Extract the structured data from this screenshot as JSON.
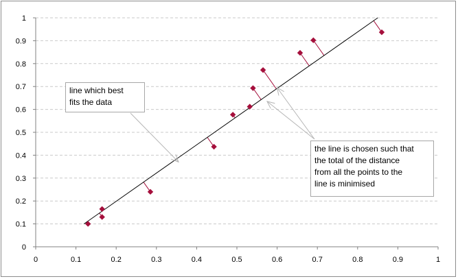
{
  "chart_data": {
    "type": "scatter",
    "title": "",
    "xlabel": "",
    "ylabel": "",
    "xlim": [
      0,
      1
    ],
    "ylim": [
      0,
      1
    ],
    "x_ticks": [
      "0",
      "0.1",
      "0.2",
      "0.3",
      "0.4",
      "0.5",
      "0.6",
      "0.7",
      "0.8",
      "0.9",
      "1"
    ],
    "y_ticks": [
      "0",
      "0.1",
      "0.2",
      "0.3",
      "0.4",
      "0.5",
      "0.6",
      "0.7",
      "0.8",
      "0.9",
      "1"
    ],
    "grid": "horizontal dashed",
    "points": [
      {
        "x": 0.13,
        "y": 0.1
      },
      {
        "x": 0.165,
        "y": 0.13
      },
      {
        "x": 0.165,
        "y": 0.165
      },
      {
        "x": 0.285,
        "y": 0.24
      },
      {
        "x": 0.443,
        "y": 0.437
      },
      {
        "x": 0.49,
        "y": 0.577
      },
      {
        "x": 0.532,
        "y": 0.612
      },
      {
        "x": 0.54,
        "y": 0.693
      },
      {
        "x": 0.565,
        "y": 0.772
      },
      {
        "x": 0.657,
        "y": 0.847
      },
      {
        "x": 0.69,
        "y": 0.902
      },
      {
        "x": 0.86,
        "y": 0.937
      }
    ],
    "fit_line": {
      "x": [
        0.12,
        0.85
      ],
      "y": [
        0.1,
        1.0
      ]
    },
    "annotations": [
      {
        "id": "best-fit",
        "text": "line which best\nfits the data",
        "arrow_to": [
          [
            0.355,
            0.37
          ]
        ]
      },
      {
        "id": "chosen",
        "text": "the line is  chosen such that\nthe total of the distance\nfrom all the points to the\nline is minimised",
        "arrow_to": [
          [
            0.575,
            0.635
          ],
          [
            0.6,
            0.695
          ]
        ]
      }
    ],
    "colors": {
      "points": "#a50f3c",
      "residuals": "#a50f3c",
      "fit_line": "#000000",
      "arrows": "#b5b5b5"
    }
  }
}
